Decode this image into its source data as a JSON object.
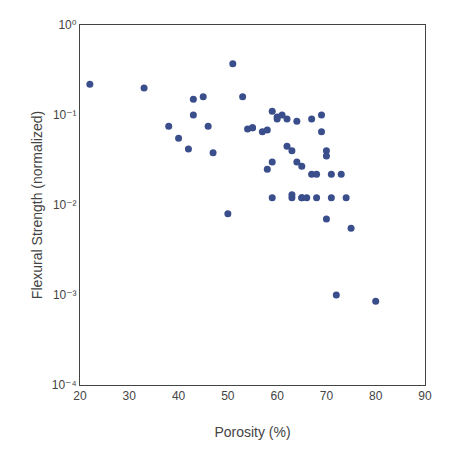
{
  "chart_data": {
    "type": "scatter",
    "x": [
      22,
      33,
      38,
      40,
      42,
      43,
      43,
      45,
      46,
      47,
      50,
      51,
      53,
      54,
      55,
      55,
      57,
      58,
      58,
      59,
      59,
      59,
      60,
      60,
      61,
      62,
      62,
      63,
      63,
      63,
      64,
      64,
      65,
      65,
      65,
      66,
      67,
      67,
      68,
      68,
      69,
      69,
      70,
      70,
      70,
      71,
      71,
      72,
      73,
      74,
      75,
      80
    ],
    "values": [
      0.22,
      0.2,
      0.075,
      0.055,
      0.042,
      0.1,
      0.15,
      0.16,
      0.075,
      0.038,
      0.008,
      0.37,
      0.16,
      0.07,
      0.072,
      0.072,
      0.065,
      0.068,
      0.025,
      0.11,
      0.03,
      0.012,
      0.095,
      0.09,
      0.1,
      0.09,
      0.045,
      0.04,
      0.013,
      0.012,
      0.085,
      0.03,
      0.027,
      0.012,
      0.012,
      0.012,
      0.09,
      0.022,
      0.022,
      0.012,
      0.1,
      0.065,
      0.04,
      0.035,
      0.007,
      0.022,
      0.012,
      0.001,
      0.022,
      0.012,
      0.0055,
      0.00085
    ],
    "color": "#3a4e8c",
    "marker": "circle",
    "xlabel": "Porosity (%)",
    "ylabel": "Flexural Strength (normalized)",
    "log": "y",
    "xlim": [
      20,
      90
    ],
    "ylim": [
      0.0001,
      1
    ],
    "xticks": [
      20,
      30,
      40,
      50,
      60,
      70,
      80,
      90
    ],
    "yticks": [
      {
        "value": 0.0001,
        "label": "10⁻⁴"
      },
      {
        "value": 0.001,
        "label": "10⁻³"
      },
      {
        "value": 0.01,
        "label": "10⁻²"
      },
      {
        "value": 0.1,
        "label": "10⁻¹"
      },
      {
        "value": 1,
        "label": "10⁰"
      }
    ],
    "grid": false
  }
}
